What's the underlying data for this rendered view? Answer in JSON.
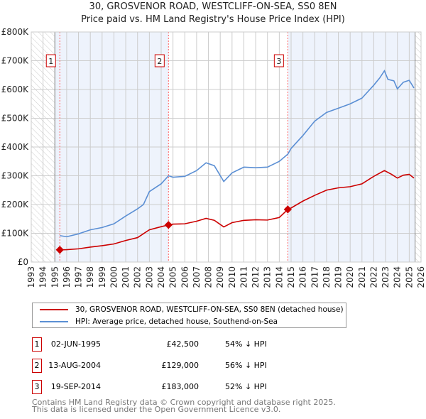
{
  "chart_data": {
    "type": "line",
    "title": "30, GROSVENOR ROAD, WESTCLIFF-ON-SEA, SS0 8EN",
    "subtitle": "Price paid vs. HM Land Registry's House Price Index (HPI)",
    "xlim": [
      1993,
      2026
    ],
    "ylim": [
      0,
      800000
    ],
    "x_ticks": [
      "1993",
      "1994",
      "1995",
      "1996",
      "1997",
      "1998",
      "1999",
      "2000",
      "2001",
      "2002",
      "2003",
      "2004",
      "2005",
      "2006",
      "2007",
      "2008",
      "2009",
      "2010",
      "2011",
      "2012",
      "2013",
      "2014",
      "2015",
      "2016",
      "2017",
      "2018",
      "2019",
      "2020",
      "2021",
      "2022",
      "2023",
      "2024",
      "2025",
      "2026"
    ],
    "y_ticks": [
      {
        "v": 0,
        "label": "£0"
      },
      {
        "v": 100000,
        "label": "£100K"
      },
      {
        "v": 200000,
        "label": "£200K"
      },
      {
        "v": 300000,
        "label": "£300K"
      },
      {
        "v": 400000,
        "label": "£400K"
      },
      {
        "v": 500000,
        "label": "£500K"
      },
      {
        "v": 600000,
        "label": "£600K"
      },
      {
        "v": 700000,
        "label": "£700K"
      },
      {
        "v": 800000,
        "label": "£800K"
      }
    ],
    "grid": true,
    "series": [
      {
        "name": "30, GROSVENOR ROAD, WESTCLIFF-ON-SEA, SS0 8EN (detached house)",
        "color": "#cc0000",
        "x": [
          1995.42,
          1996,
          1997,
          1998,
          1999,
          2000,
          2001,
          2002,
          2003,
          2004,
          2004.62,
          2005,
          2006,
          2007,
          2007.8,
          2008.5,
          2009.3,
          2010,
          2011,
          2012,
          2013,
          2014,
          2014.72,
          2015,
          2016,
          2017,
          2018,
          2019,
          2020,
          2021,
          2022,
          2022.9,
          2023.5,
          2024,
          2024.5,
          2025,
          2025.4
        ],
        "y": [
          42500,
          43000,
          46000,
          52000,
          57000,
          63000,
          75000,
          85000,
          112000,
          123000,
          129000,
          132000,
          133000,
          142000,
          152000,
          145000,
          122000,
          137000,
          145000,
          147000,
          146000,
          155000,
          183000,
          188000,
          212000,
          232000,
          250000,
          258000,
          262000,
          272000,
          298000,
          318000,
          305000,
          292000,
          302000,
          305000,
          292000
        ]
      },
      {
        "name": "HPI: Average price, detached house, Southend-on-Sea",
        "color": "#5b8fd4",
        "x": [
          1995.42,
          1996,
          1997,
          1998,
          1999,
          2000,
          2001,
          2002,
          2002.5,
          2003,
          2004,
          2004.62,
          2005,
          2006,
          2007,
          2007.8,
          2008.5,
          2009.3,
          2010,
          2011,
          2012,
          2013,
          2014,
          2014.72,
          2015,
          2016,
          2017,
          2018,
          2019,
          2020,
          2021,
          2022,
          2022.5,
          2022.9,
          2023.2,
          2023.7,
          2024,
          2024.5,
          2025,
          2025.4
        ],
        "y": [
          92000,
          88000,
          98000,
          112000,
          120000,
          133000,
          160000,
          185000,
          200000,
          245000,
          272000,
          300000,
          295000,
          298000,
          318000,
          345000,
          335000,
          280000,
          310000,
          330000,
          328000,
          330000,
          350000,
          375000,
          395000,
          440000,
          490000,
          520000,
          535000,
          550000,
          570000,
          615000,
          640000,
          665000,
          635000,
          630000,
          602000,
          625000,
          632000,
          605000
        ]
      }
    ],
    "sales": [
      {
        "n": "1",
        "x": 1995.42,
        "y": 42500,
        "date": "02-JUN-1995",
        "price": "£42,500",
        "hpi": "54% ↓ HPI"
      },
      {
        "n": "2",
        "x": 2004.62,
        "y": 129000,
        "date": "13-AUG-2004",
        "price": "£129,000",
        "hpi": "56% ↓ HPI"
      },
      {
        "n": "3",
        "x": 2014.72,
        "y": 183000,
        "date": "19-SEP-2014",
        "price": "£183,000",
        "hpi": "52% ↓ HPI"
      }
    ],
    "legend_placement": "bottom"
  },
  "footer": [
    "Contains HM Land Registry data © Crown copyright and database right 2025.",
    "This data is licensed under the Open Government Licence v3.0."
  ]
}
